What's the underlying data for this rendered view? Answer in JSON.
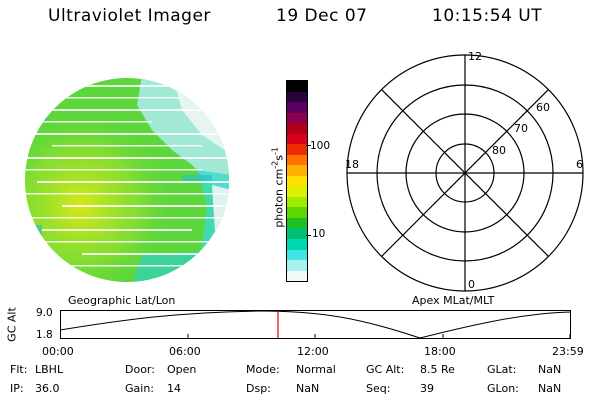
{
  "header": {
    "instrument": "Ultraviolet Imager",
    "date": "19 Dec 07",
    "time": "10:15:54 UT"
  },
  "colorbar": {
    "label": "photon cm",
    "exp1": "-2",
    "unit2": "s",
    "exp2": "-1",
    "ticks": [
      "100",
      "10"
    ],
    "colors": [
      "#000000",
      "#2a003a",
      "#5a0060",
      "#8a0050",
      "#b0001c",
      "#d8001a",
      "#ee2a00",
      "#ff7000",
      "#ffb000",
      "#ffe000",
      "#ddf000",
      "#a0ea00",
      "#5ad800",
      "#20c020",
      "#00c070",
      "#00d8b0",
      "#40e6e6",
      "#a8f0f0",
      "#f0f8f8"
    ]
  },
  "left_panel": {
    "label": "Geographic Lat/Lon"
  },
  "polar_plot": {
    "label": "Apex MLat/MLT",
    "mlt_labels": [
      "12",
      "18",
      "6",
      "0"
    ],
    "lat_labels": [
      "60",
      "70",
      "80"
    ]
  },
  "altitude_plot": {
    "ylabel": "GC Alt",
    "yticks": [
      "9.0",
      "1.8"
    ],
    "xticks": [
      "00:00",
      "06:00",
      "12:00",
      "18:00",
      "23:59"
    ],
    "marker_color": "#e00000"
  },
  "status": {
    "row1": [
      {
        "key": "Flt:",
        "value": "LBHL"
      },
      {
        "key": "Door:",
        "value": "Open"
      },
      {
        "key": "Mode:",
        "value": "Normal"
      },
      {
        "key": "GC Alt:",
        "value": "8.5 Re"
      },
      {
        "key": "GLat:",
        "value": "NaN"
      }
    ],
    "row2": [
      {
        "key": "IP:",
        "value": "36.0"
      },
      {
        "key": "Gain:",
        "value": "14"
      },
      {
        "key": "Dsp:",
        "value": "NaN"
      },
      {
        "key": "Seq:",
        "value": "39"
      },
      {
        "key": "GLon:",
        "value": "NaN"
      }
    ]
  }
}
